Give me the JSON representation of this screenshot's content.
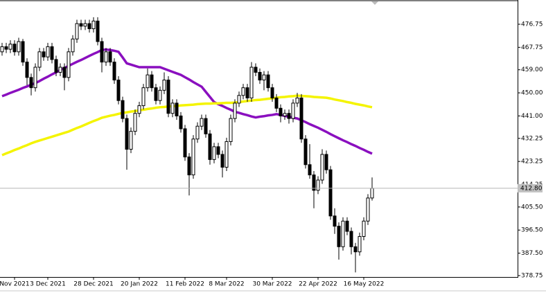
{
  "chart_data": {
    "type": "candlestick",
    "categories": [
      null,
      null,
      null,
      "Nov 2021",
      null,
      null,
      null,
      null,
      null,
      null,
      null,
      "3 Dec 2021",
      null,
      null,
      null,
      null,
      null,
      null,
      null,
      null,
      null,
      null,
      "28 Dec 2021",
      null,
      null,
      null,
      null,
      null,
      null,
      null,
      null,
      null,
      null,
      "20 Jan 2022",
      null,
      null,
      null,
      null,
      null,
      null,
      null,
      null,
      null,
      null,
      "11 Feb 2022",
      null,
      null,
      null,
      null,
      null,
      null,
      null,
      null,
      null,
      "8 Mar 2022",
      null,
      null,
      null,
      null,
      null,
      null,
      null,
      null,
      null,
      null,
      "30 Mar 2022",
      null,
      null,
      null,
      null,
      null,
      null,
      null,
      null,
      null,
      null,
      "22 Apr 2022",
      null,
      null,
      null,
      null,
      null,
      null,
      null,
      null,
      null,
      null,
      "16 May 2022",
      null,
      null
    ],
    "open": [
      466,
      468,
      467,
      469,
      466,
      470,
      462,
      456,
      452,
      460,
      466,
      464,
      468,
      463,
      458,
      460,
      456,
      466,
      471,
      477,
      476,
      477,
      475,
      478,
      470,
      462,
      466,
      462,
      455,
      447,
      440,
      428,
      435,
      442,
      445,
      452,
      457,
      452,
      447,
      451,
      455,
      442,
      446,
      441,
      436,
      425,
      418,
      432,
      437,
      440,
      434,
      424,
      429,
      426,
      421,
      431,
      440,
      446,
      449,
      452,
      448,
      460,
      458,
      455,
      457,
      452,
      448,
      444,
      441,
      442,
      440,
      446,
      448,
      432,
      422,
      418,
      412,
      416,
      426,
      420,
      402,
      398,
      390,
      400,
      396,
      390,
      388,
      394,
      400,
      409
    ],
    "high": [
      469.5,
      469.5,
      470.5,
      470.5,
      471.5,
      471,
      463.5,
      457.5,
      461.5,
      467.5,
      467.5,
      469.5,
      469.5,
      464.5,
      461.5,
      461.5,
      467.5,
      472.5,
      478.5,
      478.5,
      478.5,
      478.5,
      479.5,
      479.5,
      471.5,
      467.5,
      467.5,
      463.5,
      456.5,
      448.5,
      441.5,
      436.5,
      443.5,
      446.5,
      453.5,
      459.5,
      458.5,
      453.5,
      452.5,
      458,
      456.5,
      447.5,
      447.5,
      442.5,
      437.5,
      426.5,
      433.5,
      438.5,
      441.5,
      441.5,
      435.5,
      430.5,
      430.5,
      427.5,
      432.5,
      441.5,
      447.5,
      450.5,
      453.5,
      453.5,
      462,
      461.5,
      459.5,
      458.5,
      458.5,
      453.5,
      449.5,
      445.5,
      443.5,
      443.5,
      447.5,
      450,
      449.5,
      433.5,
      430,
      419.5,
      417.5,
      428,
      427.5,
      421.5,
      405,
      399.5,
      401.5,
      401.5,
      397.5,
      391.5,
      395.5,
      401.5,
      410.5,
      417
    ],
    "low": [
      464.5,
      465.5,
      465.5,
      464.5,
      464.5,
      460.5,
      453,
      449,
      450.5,
      458.5,
      462.5,
      462.5,
      461.5,
      456.5,
      456.5,
      451,
      454.5,
      464.5,
      469.5,
      474.5,
      474.5,
      473.5,
      473.5,
      468.5,
      458,
      460.5,
      460.5,
      453.5,
      445.5,
      438.5,
      420,
      426.5,
      433.5,
      440.5,
      443.5,
      450.5,
      450.5,
      445.5,
      445.5,
      449.5,
      440.5,
      440.5,
      439.5,
      434.5,
      423.5,
      410,
      416.5,
      430.5,
      435.5,
      432.5,
      422,
      422.5,
      424.5,
      417,
      419.5,
      429.5,
      438.5,
      444.5,
      447.5,
      446.5,
      446.5,
      456.5,
      453.5,
      451,
      450.5,
      446.5,
      442.5,
      438.5,
      439.5,
      438,
      438.5,
      444.5,
      430.5,
      420.5,
      416.5,
      405,
      410.5,
      414.5,
      418.5,
      400.5,
      395,
      385,
      388.5,
      394.5,
      387,
      380,
      386.5,
      392.5,
      398.5,
      408
    ],
    "close": [
      468,
      467,
      469,
      466,
      470,
      462,
      456,
      452,
      460,
      466,
      464,
      468,
      463,
      458,
      460,
      456,
      466,
      471,
      477,
      476,
      477,
      475,
      478,
      470,
      462,
      466,
      462,
      455,
      447,
      440,
      428,
      435,
      442,
      445,
      452,
      457,
      452,
      447,
      451,
      455,
      442,
      446,
      441,
      436,
      425,
      418,
      432,
      437,
      440,
      434,
      424,
      429,
      426,
      421,
      431,
      440,
      446,
      449,
      452,
      448,
      460,
      458,
      455,
      457,
      452,
      448,
      444,
      441,
      442,
      440,
      446,
      448,
      432,
      422,
      418,
      412,
      416,
      426,
      420,
      402,
      398,
      390,
      400,
      396,
      390,
      388,
      394,
      400,
      409,
      412.8
    ],
    "up_color": "#ffffff",
    "down_color": "#000000",
    "overlays": [
      {
        "color": "#8a0fbf",
        "values": [
          448.7,
          449.3,
          450,
          450.6,
          451.2,
          451.9,
          452.5,
          453.2,
          453.8,
          454.6,
          455.5,
          456.3,
          457.2,
          458,
          458.9,
          459.7,
          460.5,
          461.3,
          462.1,
          462.8,
          463.6,
          464.4,
          465.2,
          465.9,
          466.7,
          466.9,
          466.7,
          466.4,
          466,
          463.8,
          461.5,
          461,
          460.5,
          460,
          460,
          460,
          460,
          460,
          460,
          459.4,
          458.8,
          458.2,
          457.6,
          457,
          456.1,
          455.2,
          454.2,
          453.3,
          452.4,
          450.4,
          448.4,
          446.4,
          445.6,
          444.9,
          444.1,
          443.4,
          442.6,
          442.2,
          441.7,
          441.3,
          440.8,
          440.4,
          440.7,
          440.9,
          441.2,
          441.4,
          441.7,
          441.4,
          441,
          440.7,
          440.3,
          440,
          439.3,
          438.6,
          437.8,
          437.1,
          436.4,
          435.6,
          434.8,
          433.9,
          433.1,
          432.3,
          431.5,
          430.8,
          430,
          429.3,
          428.5,
          427.8,
          427,
          426.3
        ]
      },
      {
        "color": "#f4f400",
        "values": [
          425.7,
          426.4,
          427,
          427.7,
          428.3,
          429,
          429.6,
          430.3,
          430.9,
          431.4,
          431.9,
          432.4,
          432.9,
          433.4,
          433.9,
          434.4,
          434.9,
          435.6,
          436.3,
          436.9,
          437.6,
          438.3,
          439,
          439.6,
          440.3,
          440.7,
          441.1,
          441.4,
          441.8,
          442.2,
          442.4,
          442.7,
          442.9,
          443.2,
          443.4,
          443.7,
          443.9,
          444.2,
          444.4,
          444.5,
          444.7,
          444.8,
          444.9,
          445.1,
          445.2,
          445.3,
          445.4,
          445.6,
          445.7,
          445.8,
          445.8,
          445.9,
          445.9,
          446,
          446.1,
          446.1,
          446.2,
          446.4,
          446.6,
          446.8,
          447,
          447.2,
          447.3,
          447.5,
          447.7,
          447.9,
          448.1,
          448.3,
          448.4,
          448.6,
          448.7,
          448.9,
          448.8,
          448.7,
          448.6,
          448.4,
          448.3,
          448.2,
          448.1,
          447.8,
          447.4,
          447.1,
          446.8,
          446.4,
          446.1,
          445.7,
          445.4,
          445.1,
          444.7,
          444.4
        ]
      }
    ],
    "ylim": [
      378.2,
      486.2
    ],
    "yticks": [
      {
        "value": 378.75,
        "label": "378.75"
      },
      {
        "value": 387.5,
        "label": "387.50"
      },
      {
        "value": 396.5,
        "label": "396.50"
      },
      {
        "value": 405.5,
        "label": "405.50"
      },
      {
        "value": 414.25,
        "label": "414.25"
      },
      {
        "value": 423.25,
        "label": "423.25"
      },
      {
        "value": 432.25,
        "label": "432.25"
      },
      {
        "value": 441,
        "label": "441.00"
      },
      {
        "value": 450,
        "label": "450.00"
      },
      {
        "value": 459,
        "label": "459.00"
      },
      {
        "value": 467.75,
        "label": "467.75"
      },
      {
        "value": 476.75,
        "label": "476.75"
      }
    ],
    "last_price": {
      "value": 412.8,
      "label": "412.80"
    }
  }
}
